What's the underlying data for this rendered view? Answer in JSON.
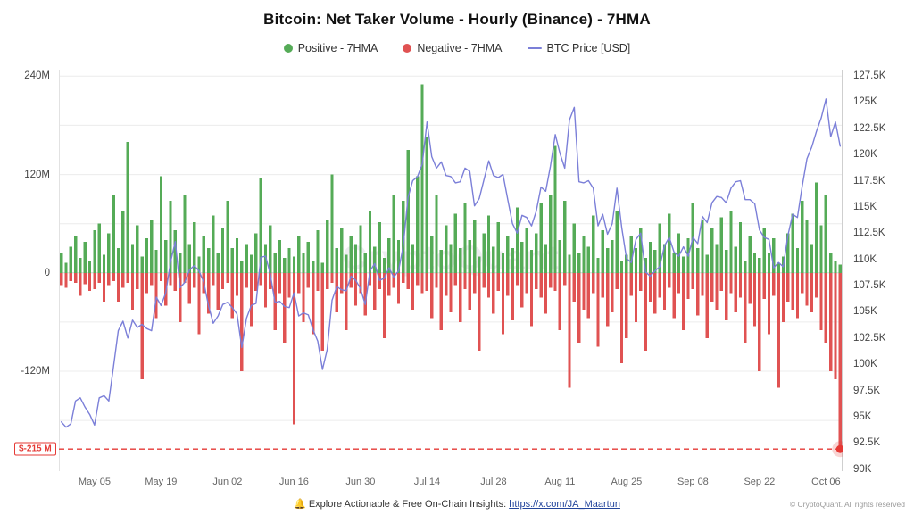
{
  "page": {
    "title": "Bitcoin: Net Taker Volume - Hourly (Binance) - 7HMA",
    "watermark": "CryptoQuant",
    "footer": {
      "bell_icon": "🔔",
      "insights_text": "Explore Actionable & Free On-Chain Insights: ",
      "insights_link": "https://x.com/JA_Maartun",
      "copyright": "© CryptoQuant. All rights reserved"
    }
  },
  "legend": [
    {
      "label": "Positive - 7HMA",
      "marker": "dot",
      "color": "#55ab57"
    },
    {
      "label": "Negative - 7HMA",
      "marker": "dot",
      "color": "#e05252"
    },
    {
      "label": "BTC Price [USD]",
      "marker": "line",
      "color": "#7b7fd8"
    }
  ],
  "chart_data": {
    "type": "bar+line",
    "title": "Bitcoin: Net Taker Volume - Hourly (Binance) - 7HMA",
    "x_unit": "days (Apr 28 - Oct 09)",
    "x_tick_labels": [
      "May 05",
      "May 19",
      "Jun 02",
      "Jun 16",
      "Jun 30",
      "Jul 14",
      "Jul 28",
      "Aug 11",
      "Aug 25",
      "Sep 08",
      "Sep 22",
      "Oct 06"
    ],
    "x_tick_indices": [
      7,
      21,
      35,
      49,
      63,
      77,
      91,
      105,
      119,
      133,
      147,
      161
    ],
    "left_axis": {
      "unit": "M USD",
      "ticks": [
        "240M",
        "120M",
        "0",
        "-120M"
      ],
      "tick_values": [
        240,
        120,
        0,
        -120
      ],
      "max": 248,
      "min": -242
    },
    "right_axis": {
      "unit": "K USD",
      "ticks": [
        "127.5K",
        "125K",
        "122.5K",
        "120K",
        "117.5K",
        "115K",
        "112.5K",
        "110K",
        "107.5K",
        "105K",
        "102.5K",
        "100K",
        "97.5K",
        "95K",
        "92.5K",
        "90K"
      ],
      "tick_values": [
        127.5,
        125,
        122.5,
        120,
        117.5,
        115,
        112.5,
        110,
        107.5,
        105,
        102.5,
        100,
        97.5,
        95,
        92.5,
        90
      ],
      "max": 128.1,
      "min": 89.8
    },
    "gridline_values": [
      240,
      180,
      120,
      60,
      0,
      -60,
      -120,
      -180
    ],
    "annotation": {
      "label": "$-215 M",
      "value": -215,
      "color": "#e53935",
      "style": "dashed"
    },
    "series": [
      {
        "name": "Positive - 7HMA",
        "type": "bar",
        "color": "#55ab57",
        "values": [
          25,
          12,
          32,
          45,
          18,
          38,
          15,
          52,
          60,
          22,
          48,
          95,
          30,
          75,
          160,
          35,
          58,
          20,
          42,
          65,
          28,
          118,
          40,
          88,
          52,
          25,
          95,
          35,
          62,
          20,
          45,
          30,
          70,
          25,
          55,
          88,
          30,
          42,
          15,
          35,
          22,
          48,
          115,
          35,
          58,
          25,
          40,
          18,
          30,
          20,
          45,
          25,
          38,
          15,
          52,
          12,
          65,
          120,
          30,
          55,
          22,
          45,
          35,
          58,
          25,
          75,
          32,
          62,
          18,
          42,
          95,
          40,
          88,
          150,
          35,
          118,
          230,
          165,
          45,
          95,
          28,
          58,
          35,
          72,
          30,
          85,
          40,
          65,
          20,
          48,
          70,
          32,
          62,
          25,
          45,
          30,
          80,
          38,
          55,
          28,
          48,
          85,
          35,
          95,
          155,
          40,
          88,
          22,
          60,
          25,
          45,
          32,
          70,
          18,
          52,
          30,
          40,
          75,
          15,
          22,
          45,
          30,
          55,
          18,
          38,
          28,
          60,
          35,
          72,
          25,
          48,
          20,
          42,
          85,
          30,
          65,
          22,
          55,
          35,
          68,
          28,
          75,
          32,
          62,
          15,
          45,
          25,
          18,
          55,
          25,
          42,
          12,
          20,
          48,
          72,
          30,
          88,
          65,
          35,
          110,
          58,
          95,
          25,
          15,
          10
        ]
      },
      {
        "name": "Negative - 7HMA",
        "type": "bar",
        "color": "#e05252",
        "values": [
          -15,
          -18,
          -10,
          -12,
          -28,
          -14,
          -22,
          -20,
          -12,
          -35,
          -15,
          -10,
          -35,
          -18,
          -12,
          -45,
          -20,
          -130,
          -25,
          -15,
          -55,
          -10,
          -40,
          -15,
          -22,
          -60,
          -12,
          -38,
          -18,
          -75,
          -25,
          -50,
          -15,
          -45,
          -20,
          -12,
          -55,
          -28,
          -120,
          -18,
          -65,
          -22,
          -15,
          -42,
          -20,
          -70,
          -25,
          -85,
          -30,
          -185,
          -25,
          -60,
          -18,
          -75,
          -22,
          -95,
          -20,
          -12,
          -48,
          -25,
          -70,
          -18,
          -40,
          -25,
          -52,
          -15,
          -45,
          -20,
          -80,
          -28,
          -18,
          -38,
          -12,
          -20,
          -45,
          -15,
          -25,
          -22,
          -55,
          -18,
          -70,
          -28,
          -48,
          -15,
          -60,
          -20,
          -45,
          -25,
          -95,
          -18,
          -30,
          -50,
          -22,
          -75,
          -28,
          -58,
          -15,
          -42,
          -25,
          -65,
          -20,
          -30,
          -50,
          -18,
          -22,
          -70,
          -15,
          -140,
          -35,
          -85,
          -45,
          -55,
          -25,
          -90,
          -30,
          -65,
          -48,
          -20,
          -110,
          -80,
          -28,
          -60,
          -22,
          -95,
          -35,
          -50,
          -30,
          -45,
          -18,
          -55,
          -25,
          -70,
          -32,
          -20,
          -52,
          -28,
          -80,
          -35,
          -45,
          -22,
          -58,
          -25,
          -48,
          -30,
          -85,
          -38,
          -65,
          -120,
          -32,
          -75,
          -28,
          -140,
          -60,
          -35,
          -45,
          -55,
          -25,
          -40,
          -48,
          -30,
          -70,
          -85,
          -120,
          -130,
          -215
        ]
      },
      {
        "name": "BTC Price [USD]",
        "type": "line",
        "color": "#7b7fd8",
        "values": [
          94.5,
          94.0,
          94.3,
          96.5,
          96.8,
          95.9,
          95.2,
          94.2,
          96.8,
          97.0,
          96.5,
          99.8,
          103.2,
          104.1,
          102.5,
          104.2,
          103.5,
          103.8,
          103.4,
          103.2,
          106.4,
          105.6,
          106.8,
          109.7,
          111.7,
          107.3,
          107.8,
          109.0,
          109.4,
          108.9,
          107.8,
          105.6,
          103.9,
          104.6,
          105.7,
          105.9,
          105.4,
          104.8,
          101.6,
          104.4,
          105.6,
          105.8,
          110.2,
          110.3,
          108.6,
          105.9,
          106.0,
          105.5,
          105.4,
          106.8,
          104.6,
          104.9,
          104.7,
          103.3,
          102.2,
          99.5,
          101.4,
          106.1,
          107.4,
          107.1,
          107.0,
          108.4,
          108.0,
          107.2,
          105.7,
          108.9,
          109.6,
          108.0,
          108.2,
          109.2,
          108.3,
          108.9,
          111.3,
          115.9,
          117.5,
          117.9,
          119.1,
          123.1,
          119.8,
          118.7,
          119.3,
          118.0,
          117.9,
          117.3,
          117.4,
          118.7,
          118.4,
          115.1,
          115.8,
          117.6,
          119.4,
          118.0,
          117.8,
          118.1,
          115.7,
          113.4,
          112.5,
          114.2,
          114.0,
          113.2,
          114.6,
          116.9,
          116.5,
          118.9,
          121.9,
          120.1,
          118.7,
          123.3,
          124.5,
          117.4,
          117.3,
          117.5,
          116.8,
          113.2,
          114.3,
          112.4,
          113.4,
          116.8,
          113.0,
          110.1,
          109.7,
          111.9,
          112.5,
          108.8,
          108.4,
          108.9,
          109.3,
          111.3,
          112.1,
          110.7,
          110.3,
          111.2,
          110.3,
          112.1,
          111.5,
          114.1,
          113.5,
          115.4,
          116.0,
          115.9,
          115.4,
          116.8,
          117.4,
          117.5,
          115.7,
          115.7,
          115.3,
          112.8,
          112.1,
          111.9,
          109.2,
          109.7,
          109.3,
          112.3,
          114.3,
          114.0,
          117.0,
          119.6,
          120.7,
          122.2,
          123.5,
          125.3,
          121.7,
          123.1,
          120.8
        ]
      }
    ]
  }
}
